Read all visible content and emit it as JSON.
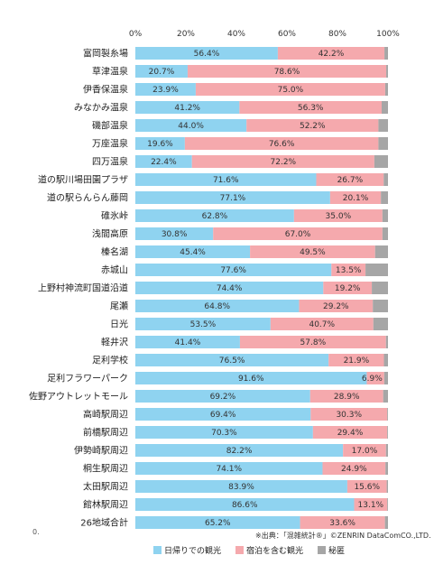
{
  "chart_data": {
    "type": "bar",
    "orientation": "horizontal",
    "stacked": "percent",
    "categories": [
      "富岡製糸場",
      "草津温泉",
      "伊香保温泉",
      "みなかみ温泉",
      "磯部温泉",
      "万座温泉",
      "四万温泉",
      "道の駅川場田園プラザ",
      "道の駅らんらん藤岡",
      "碓氷峠",
      "浅間高原",
      "榛名湖",
      "赤城山",
      "上野村神流町国道沿道",
      "尾瀬",
      "日光",
      "軽井沢",
      "足利学校",
      "足利フラワーパーク",
      "佐野アウトレットモール",
      "高崎駅周辺",
      "前橋駅周辺",
      "伊勢崎駅周辺",
      "桐生駅周辺",
      "太田駅周辺",
      "館林駅周辺",
      "26地域合計"
    ],
    "series": [
      {
        "name": "日帰りでの観光",
        "color": "#8fd3f0",
        "values": [
          56.4,
          20.7,
          23.9,
          41.2,
          44.0,
          19.6,
          22.4,
          71.6,
          77.1,
          62.8,
          30.8,
          45.4,
          77.6,
          74.4,
          64.8,
          53.5,
          41.4,
          76.5,
          91.6,
          69.2,
          69.4,
          70.3,
          82.2,
          74.1,
          83.9,
          86.6,
          65.2
        ]
      },
      {
        "name": "宿泊を含む観光",
        "color": "#f5a9ad",
        "values": [
          42.2,
          78.6,
          75.0,
          56.3,
          52.2,
          76.6,
          72.2,
          26.7,
          20.1,
          35.0,
          67.0,
          49.5,
          13.5,
          19.2,
          29.2,
          40.7,
          57.8,
          21.9,
          6.9,
          28.9,
          30.3,
          29.4,
          17.0,
          24.9,
          15.6,
          13.1,
          33.6
        ]
      },
      {
        "name": "秘匿",
        "color": "#a6a6a6",
        "values": [
          1.4,
          0.7,
          1.1,
          2.5,
          3.8,
          3.8,
          5.4,
          1.7,
          2.8,
          2.2,
          2.2,
          5.1,
          8.9,
          6.4,
          6.0,
          5.8,
          0.8,
          1.6,
          1.5,
          1.9,
          0.3,
          0.3,
          0.8,
          1.0,
          0.5,
          0.3,
          1.2
        ]
      }
    ],
    "data_labels": [
      [
        "56.4%",
        "42.2%"
      ],
      [
        "20.7%",
        "78.6%"
      ],
      [
        "23.9%",
        "75.0%"
      ],
      [
        "41.2%",
        "56.3%"
      ],
      [
        "44.0%",
        "52.2%"
      ],
      [
        "19.6%",
        "76.6%"
      ],
      [
        "22.4%",
        "72.2%"
      ],
      [
        "71.6%",
        "26.7%"
      ],
      [
        "77.1%",
        "20.1%"
      ],
      [
        "62.8%",
        "35.0%"
      ],
      [
        "30.8%",
        "67.0%"
      ],
      [
        "45.4%",
        "49.5%"
      ],
      [
        "77.6%",
        "13.5%"
      ],
      [
        "74.4%",
        "19.2%"
      ],
      [
        "64.8%",
        "29.2%"
      ],
      [
        "53.5%",
        "40.7%"
      ],
      [
        "41.4%",
        "57.8%"
      ],
      [
        "76.5%",
        "21.9%"
      ],
      [
        "91.6%",
        "6.9%"
      ],
      [
        "69.2%",
        "28.9%"
      ],
      [
        "69.4%",
        "30.3%"
      ],
      [
        "70.3%",
        "29.4%"
      ],
      [
        "82.2%",
        "17.0%"
      ],
      [
        "74.1%",
        "24.9%"
      ],
      [
        "83.9%",
        "15.6%"
      ],
      [
        "86.6%",
        "13.1%"
      ],
      [
        "65.2%",
        "33.6%"
      ]
    ],
    "x_ticks": [
      "0%",
      "20%",
      "40%",
      "60%",
      "80%",
      "100%"
    ],
    "xlim": [
      0,
      100
    ],
    "grid": false,
    "legend_position": "bottom"
  },
  "source_note": "※出典：「混雑統計®」©ZENRIN DataComCO.,LTD.",
  "corner_mark": "0.",
  "legend": {
    "items": [
      {
        "label": "日帰りでの観光",
        "color": "#8fd3f0"
      },
      {
        "label": "宿泊を含む観光",
        "color": "#f5a9ad"
      },
      {
        "label": "秘匿",
        "color": "#a6a6a6"
      }
    ]
  }
}
